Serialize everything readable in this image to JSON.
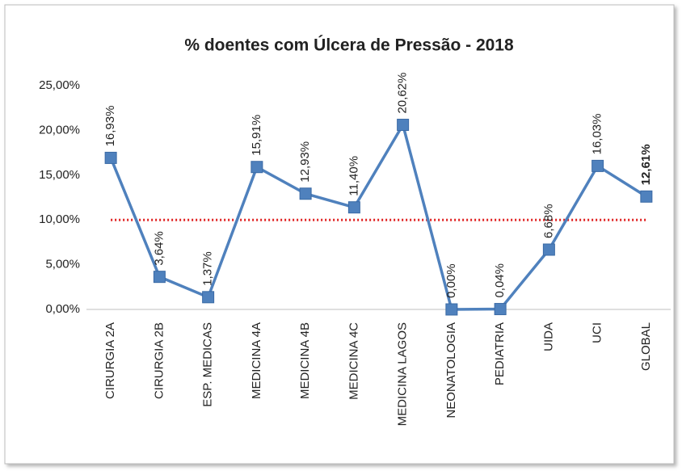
{
  "chart_data": {
    "type": "line",
    "title": "% doentes com  Úlcera de Pressão - 2018",
    "categories": [
      "CIRURGIA 2A",
      "CIRURGIA 2B",
      "ESP. MEDICAS",
      "MEDICINA 4A",
      "MEDICINA 4B",
      "MEDICINA 4C",
      "MEDICINA LAGOS",
      "NEONATOLOGIA",
      "PEDIATRIA",
      "UIDA",
      "UCI",
      "GLOBAL"
    ],
    "values": [
      16.93,
      3.64,
      1.37,
      15.91,
      12.93,
      11.4,
      20.62,
      0,
      0.04,
      6.68,
      16.03,
      12.61
    ],
    "value_labels": [
      "16,93%",
      "3,64%",
      "1,37%",
      "15,91%",
      "12,93%",
      "11,40%",
      "20,62%",
      "0,00%",
      "0,04%",
      "6,68%",
      "16,03%",
      "12,61%"
    ],
    "color": "#4f81bd",
    "ylim": [
      0,
      25
    ],
    "yticks": [
      {
        "value": 0,
        "label": "0,00%"
      },
      {
        "value": 5,
        "label": "5,00%"
      },
      {
        "value": 10,
        "label": "10,00%"
      },
      {
        "value": 15,
        "label": "15,00%"
      },
      {
        "value": 20,
        "label": "20,00%"
      },
      {
        "value": 25,
        "label": "25,00%"
      }
    ],
    "target_line": {
      "value": 10,
      "color": "#e02020"
    },
    "grid": false
  }
}
